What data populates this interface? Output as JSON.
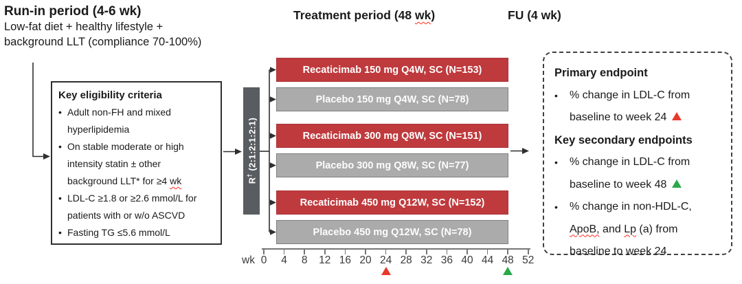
{
  "chars": {
    "bullet": "•"
  },
  "colors": {
    "recaticimab_bar": "#bf3a3d",
    "placebo_bar": "#ababab",
    "randomization_bar": "#595d61",
    "primary_marker_red": "#e8392b",
    "secondary_marker_green": "#2ba84a",
    "spellcheck_underline": "#ff2a1a"
  },
  "run_in": {
    "title": "Run-in period (4-6 wk)",
    "description": "Low-fat diet + healthy lifestyle +\nbackground LLT (compliance 70-100%)"
  },
  "treatment": {
    "title_prefix": "Treatment period (48 ",
    "title_misspelled": "wk",
    "title_suffix": ")"
  },
  "followup": {
    "title": "FU (4 wk)"
  },
  "eligibility": {
    "title": "Key eligibility criteria",
    "bullets": [
      {
        "text": "Adult non-FH and mixed\nhyperlipidemia"
      },
      {
        "text_before": "On stable moderate or high\nintensity statin ± other\nbackground LLT* for ≥4 ",
        "misspelled": "wk"
      },
      {
        "text": "LDL-C ≥1.8 or ≥2.6 mmol/L for\npatients with or w/o ASCVD"
      },
      {
        "text": "Fasting TG ≤5.6 mmol/L"
      }
    ]
  },
  "randomization": {
    "r": "R",
    "dagger": "†",
    "ratio": " (2:1:2:1:2:1)"
  },
  "arms": [
    {
      "label": "Recaticimab 150 mg Q4W, SC (N=153)",
      "type": "recaticimab"
    },
    {
      "label": "Placebo 150 mg Q4W, SC (N=78)",
      "type": "placebo"
    },
    {
      "label": "Recaticimab 300 mg Q8W, SC (N=151)",
      "type": "recaticimab"
    },
    {
      "label": "Placebo 300 mg Q8W, SC (N=77)",
      "type": "placebo"
    },
    {
      "label": "Recaticimab 450 mg Q12W, SC (N=152)",
      "type": "recaticimab"
    },
    {
      "label": "Placebo 450 mg Q12W, SC (N=78)",
      "type": "placebo"
    }
  ],
  "axis": {
    "unit_label": "wk",
    "labels": [
      "0",
      "4",
      "8",
      "12",
      "16",
      "20",
      "24",
      "28",
      "32",
      "36",
      "40",
      "44",
      "48",
      "52"
    ],
    "markers": [
      {
        "week": 24,
        "color": "#e8392b",
        "name": "primary-endpoint-week24-marker"
      },
      {
        "week": 48,
        "color": "#2ba84a",
        "name": "secondary-endpoint-week48-marker"
      }
    ]
  },
  "endpoints": {
    "primary_title": "Primary endpoint",
    "primary_bullet": "% change in LDL-C from\nbaseline to week 24 ",
    "secondary_title": "Key secondary endpoints",
    "secondary_bullet_1": "% change in LDL-C from\nbaseline to week 48 ",
    "secondary_bullet_2": {
      "part_a": "% change in non-HDL-C,\n",
      "misspelled_1": "ApoB,",
      "part_b": " and ",
      "misspelled_2": "Lp",
      "part_c": " (a) from\nbaseline to week 24"
    }
  }
}
